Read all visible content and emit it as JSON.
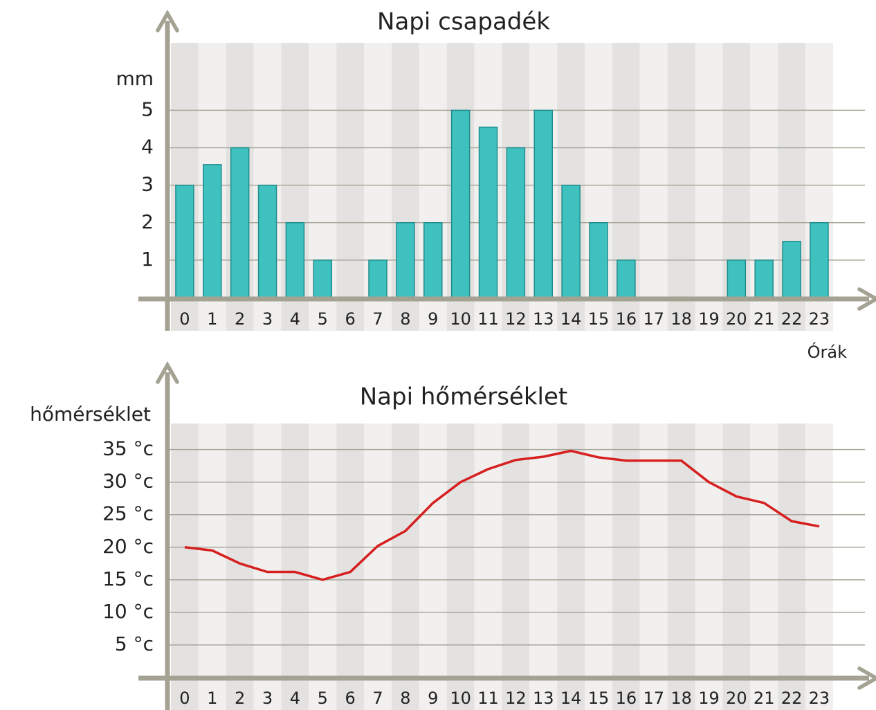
{
  "chart_data": [
    {
      "type": "bar",
      "title": "Napi csapadék",
      "y_label": "mm",
      "x_label": "Órák",
      "categories": [
        "0",
        "1",
        "2",
        "3",
        "4",
        "5",
        "6",
        "7",
        "8",
        "9",
        "10",
        "11",
        "12",
        "13",
        "14",
        "15",
        "16",
        "17",
        "18",
        "19",
        "20",
        "21",
        "22",
        "23"
      ],
      "values": [
        3,
        3.55,
        4,
        3,
        2,
        1,
        0,
        1,
        2,
        2,
        5,
        4.55,
        4,
        5,
        3,
        2,
        1,
        0,
        0,
        0,
        1,
        1,
        1.5,
        2
      ],
      "color": "#3fc1c0",
      "ylim": [
        0,
        6.8
      ],
      "yticks": [
        1,
        2,
        3,
        4,
        5
      ],
      "grid": true
    },
    {
      "type": "line",
      "title": "Napi hőmérséklet",
      "y_label": "hőmérséklet",
      "categories": [
        "0",
        "1",
        "2",
        "3",
        "4",
        "5",
        "6",
        "7",
        "8",
        "9",
        "10",
        "11",
        "12",
        "13",
        "14",
        "15",
        "16",
        "17",
        "18",
        "19",
        "20",
        "21",
        "22",
        "23"
      ],
      "values": [
        20,
        19.5,
        17.5,
        16.2,
        16.2,
        15,
        16.2,
        20.2,
        22.5,
        26.8,
        30,
        32,
        33.4,
        33.9,
        34.8,
        33.8,
        33.3,
        33.3,
        33.3,
        30,
        27.8,
        26.8,
        24,
        23.2
      ],
      "color": "#d61f1f",
      "ylim": [
        0,
        39
      ],
      "yticks": [
        {
          "value": 5,
          "label": "5 °c"
        },
        {
          "value": 10,
          "label": "10 °c"
        },
        {
          "value": 15,
          "label": "15 °c"
        },
        {
          "value": 20,
          "label": "20 °c"
        },
        {
          "value": 25,
          "label": "25 °c"
        },
        {
          "value": 30,
          "label": "30 °c"
        },
        {
          "value": 35,
          "label": "35 °c"
        }
      ],
      "grid": true
    }
  ]
}
